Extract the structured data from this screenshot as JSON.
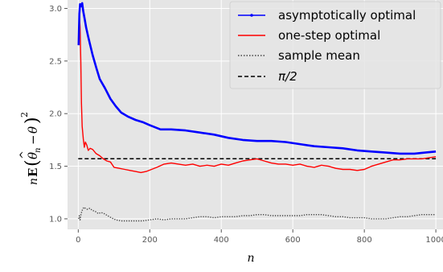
{
  "chart_data": {
    "type": "line",
    "xlabel": "n",
    "ylabel": "nE(θ̂n − θ)²",
    "xlim": [
      -30,
      1020
    ],
    "ylim": [
      0.9,
      3.08
    ],
    "x_ticks": [
      0,
      200,
      400,
      600,
      800,
      1000
    ],
    "x_tick_labels": [
      "0",
      "200",
      "400",
      "600",
      "800",
      "1000"
    ],
    "y_ticks": [
      1.0,
      1.5,
      2.0,
      2.5,
      3.0
    ],
    "y_tick_labels": [
      "1.0",
      "1.5",
      "2.0",
      "2.5",
      "3.0"
    ],
    "grid": true,
    "legend_position": "top-right",
    "series": [
      {
        "name": "asymptotically optimal",
        "color": "#0000ff",
        "style": "solid-dots",
        "points": [
          [
            1,
            2.65
          ],
          [
            3,
            2.95
          ],
          [
            5,
            3.04
          ],
          [
            8,
            3.02
          ],
          [
            11,
            3.05
          ],
          [
            14,
            2.97
          ],
          [
            18,
            2.9
          ],
          [
            22,
            2.82
          ],
          [
            27,
            2.74
          ],
          [
            32,
            2.67
          ],
          [
            40,
            2.56
          ],
          [
            50,
            2.44
          ],
          [
            60,
            2.33
          ],
          [
            75,
            2.24
          ],
          [
            90,
            2.14
          ],
          [
            105,
            2.07
          ],
          [
            120,
            2.01
          ],
          [
            140,
            1.97
          ],
          [
            160,
            1.94
          ],
          [
            180,
            1.92
          ],
          [
            200,
            1.89
          ],
          [
            230,
            1.85
          ],
          [
            260,
            1.85
          ],
          [
            300,
            1.84
          ],
          [
            340,
            1.82
          ],
          [
            380,
            1.8
          ],
          [
            420,
            1.77
          ],
          [
            460,
            1.75
          ],
          [
            500,
            1.74
          ],
          [
            540,
            1.74
          ],
          [
            580,
            1.73
          ],
          [
            620,
            1.71
          ],
          [
            660,
            1.69
          ],
          [
            700,
            1.68
          ],
          [
            740,
            1.67
          ],
          [
            780,
            1.65
          ],
          [
            820,
            1.64
          ],
          [
            860,
            1.63
          ],
          [
            900,
            1.62
          ],
          [
            940,
            1.62
          ],
          [
            970,
            1.63
          ],
          [
            1000,
            1.64
          ]
        ]
      },
      {
        "name": "one-step optimal",
        "color": "#ff0000",
        "style": "solid",
        "points": [
          [
            1,
            2.68
          ],
          [
            3,
            2.95
          ],
          [
            5,
            2.82
          ],
          [
            7,
            2.5
          ],
          [
            9,
            2.1
          ],
          [
            11,
            1.88
          ],
          [
            14,
            1.76
          ],
          [
            17,
            1.68
          ],
          [
            20,
            1.73
          ],
          [
            24,
            1.7
          ],
          [
            28,
            1.65
          ],
          [
            33,
            1.67
          ],
          [
            40,
            1.66
          ],
          [
            50,
            1.62
          ],
          [
            60,
            1.6
          ],
          [
            70,
            1.57
          ],
          [
            80,
            1.55
          ],
          [
            90,
            1.54
          ],
          [
            100,
            1.49
          ],
          [
            115,
            1.48
          ],
          [
            130,
            1.47
          ],
          [
            145,
            1.46
          ],
          [
            160,
            1.45
          ],
          [
            175,
            1.44
          ],
          [
            190,
            1.45
          ],
          [
            205,
            1.47
          ],
          [
            220,
            1.49
          ],
          [
            240,
            1.52
          ],
          [
            260,
            1.53
          ],
          [
            280,
            1.52
          ],
          [
            300,
            1.51
          ],
          [
            320,
            1.52
          ],
          [
            340,
            1.5
          ],
          [
            360,
            1.51
          ],
          [
            380,
            1.5
          ],
          [
            400,
            1.52
          ],
          [
            420,
            1.51
          ],
          [
            440,
            1.53
          ],
          [
            460,
            1.55
          ],
          [
            480,
            1.56
          ],
          [
            500,
            1.57
          ],
          [
            520,
            1.55
          ],
          [
            540,
            1.53
          ],
          [
            560,
            1.52
          ],
          [
            580,
            1.52
          ],
          [
            600,
            1.51
          ],
          [
            620,
            1.52
          ],
          [
            640,
            1.5
          ],
          [
            660,
            1.49
          ],
          [
            680,
            1.51
          ],
          [
            700,
            1.5
          ],
          [
            720,
            1.48
          ],
          [
            740,
            1.47
          ],
          [
            760,
            1.47
          ],
          [
            780,
            1.46
          ],
          [
            800,
            1.47
          ],
          [
            820,
            1.5
          ],
          [
            840,
            1.52
          ],
          [
            860,
            1.54
          ],
          [
            880,
            1.56
          ],
          [
            900,
            1.56
          ],
          [
            920,
            1.57
          ],
          [
            940,
            1.57
          ],
          [
            960,
            1.57
          ],
          [
            980,
            1.58
          ],
          [
            1000,
            1.59
          ]
        ]
      },
      {
        "name": "sample mean",
        "color": "#444444",
        "style": "dotted",
        "points": [
          [
            1,
            1.0
          ],
          [
            3,
            1.03
          ],
          [
            5,
            0.99
          ],
          [
            8,
            1.05
          ],
          [
            12,
            1.09
          ],
          [
            16,
            1.11
          ],
          [
            20,
            1.1
          ],
          [
            26,
            1.09
          ],
          [
            32,
            1.1
          ],
          [
            40,
            1.08
          ],
          [
            48,
            1.07
          ],
          [
            56,
            1.05
          ],
          [
            64,
            1.06
          ],
          [
            72,
            1.05
          ],
          [
            82,
            1.03
          ],
          [
            92,
            1.01
          ],
          [
            105,
            0.99
          ],
          [
            120,
            0.98
          ],
          [
            140,
            0.98
          ],
          [
            160,
            0.98
          ],
          [
            180,
            0.98
          ],
          [
            200,
            0.99
          ],
          [
            220,
            1.0
          ],
          [
            240,
            0.99
          ],
          [
            260,
            1.0
          ],
          [
            280,
            1.0
          ],
          [
            300,
            1.0
          ],
          [
            320,
            1.01
          ],
          [
            340,
            1.02
          ],
          [
            360,
            1.02
          ],
          [
            380,
            1.01
          ],
          [
            400,
            1.02
          ],
          [
            420,
            1.02
          ],
          [
            440,
            1.02
          ],
          [
            460,
            1.03
          ],
          [
            480,
            1.03
          ],
          [
            500,
            1.04
          ],
          [
            520,
            1.04
          ],
          [
            540,
            1.03
          ],
          [
            560,
            1.03
          ],
          [
            580,
            1.03
          ],
          [
            600,
            1.03
          ],
          [
            620,
            1.03
          ],
          [
            640,
            1.04
          ],
          [
            660,
            1.04
          ],
          [
            680,
            1.04
          ],
          [
            700,
            1.03
          ],
          [
            720,
            1.02
          ],
          [
            740,
            1.02
          ],
          [
            760,
            1.01
          ],
          [
            780,
            1.01
          ],
          [
            800,
            1.01
          ],
          [
            820,
            1.0
          ],
          [
            840,
            1.0
          ],
          [
            860,
            1.0
          ],
          [
            880,
            1.01
          ],
          [
            900,
            1.02
          ],
          [
            920,
            1.02
          ],
          [
            940,
            1.03
          ],
          [
            960,
            1.04
          ],
          [
            980,
            1.04
          ],
          [
            1000,
            1.04
          ]
        ]
      },
      {
        "name": "π/2",
        "color": "#000000",
        "style": "dashed",
        "points": [
          [
            0,
            1.5708
          ],
          [
            1000,
            1.5708
          ]
        ]
      }
    ]
  }
}
